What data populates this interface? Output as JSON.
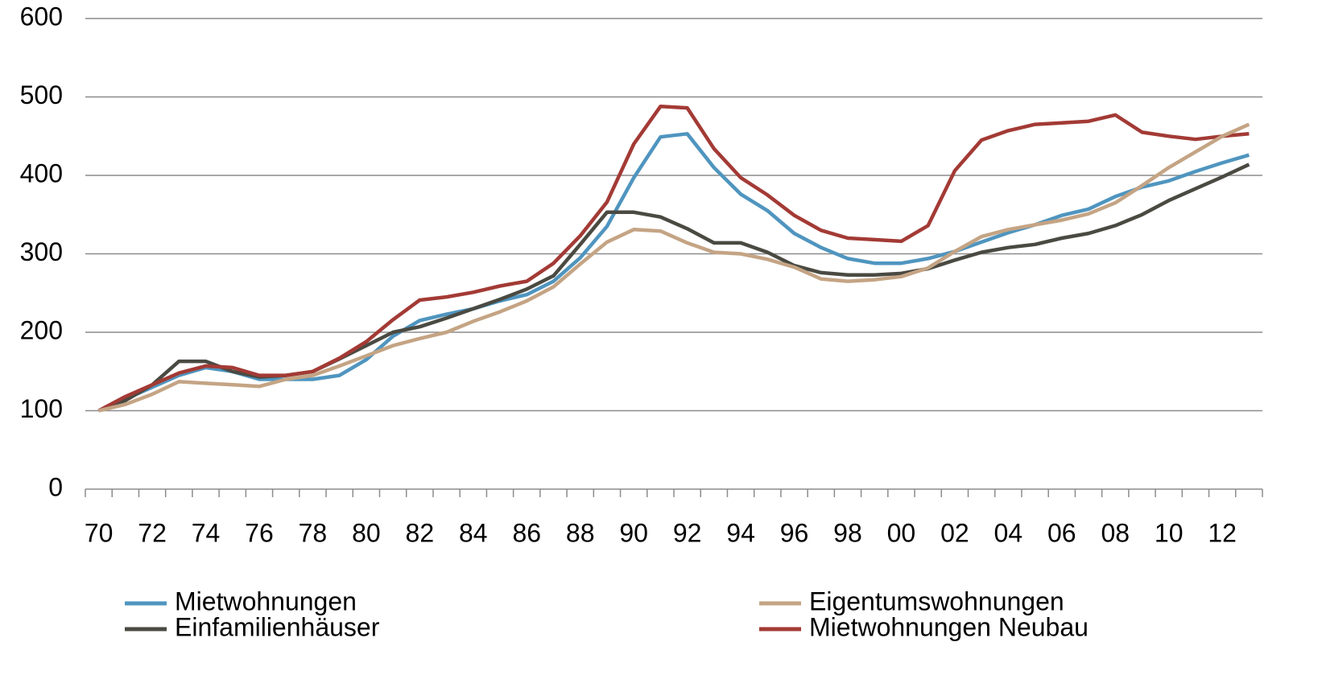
{
  "chart_data": {
    "type": "line",
    "categories": [
      "70",
      null,
      "72",
      null,
      "74",
      null,
      "76",
      null,
      "78",
      null,
      "80",
      null,
      "82",
      null,
      "84",
      null,
      "86",
      null,
      "88",
      null,
      "90",
      null,
      "92",
      null,
      "94",
      null,
      "96",
      null,
      "98",
      null,
      "00",
      null,
      "02",
      null,
      "04",
      null,
      "06",
      null,
      "08",
      null,
      "10",
      null,
      "12",
      null
    ],
    "series": [
      {
        "name": "Mietwohnungen",
        "color": "#4f95bf",
        "values": [
          100,
          115,
          130,
          145,
          155,
          150,
          140,
          140,
          140,
          145,
          165,
          195,
          215,
          223,
          230,
          240,
          248,
          265,
          295,
          335,
          397,
          449,
          453,
          410,
          376,
          355,
          326,
          308,
          294,
          288,
          288,
          294,
          303,
          315,
          327,
          337,
          349,
          357,
          373,
          385,
          393,
          405,
          416,
          426
        ]
      },
      {
        "name": "Eigentumswohnungen",
        "color": "#c4a484",
        "values": [
          100,
          108,
          121,
          137,
          135,
          133,
          131,
          140,
          145,
          157,
          170,
          183,
          192,
          200,
          214,
          226,
          240,
          258,
          287,
          315,
          331,
          329,
          314,
          302,
          300,
          293,
          283,
          268,
          265,
          267,
          271,
          282,
          303,
          322,
          331,
          337,
          343,
          351,
          365,
          387,
          410,
          430,
          450,
          465
        ]
      },
      {
        "name": "Einfamilienhäuser",
        "color": "#4a4a42",
        "values": [
          100,
          113,
          133,
          163,
          163,
          150,
          143,
          145,
          150,
          166,
          183,
          200,
          207,
          218,
          230,
          242,
          255,
          272,
          312,
          353,
          353,
          347,
          332,
          314,
          314,
          302,
          285,
          276,
          273,
          273,
          275,
          281,
          292,
          302,
          308,
          312,
          320,
          326,
          336,
          350,
          368,
          383,
          398,
          414
        ]
      },
      {
        "name": "Mietwohnungen Neubau",
        "color": "#a33a35",
        "values": [
          100,
          118,
          133,
          148,
          157,
          155,
          145,
          145,
          150,
          167,
          188,
          216,
          241,
          245,
          251,
          259,
          265,
          288,
          323,
          366,
          440,
          488,
          486,
          434,
          397,
          375,
          349,
          330,
          320,
          318,
          316,
          336,
          406,
          445,
          457,
          465,
          467,
          469,
          477,
          455,
          450,
          446,
          450,
          453
        ]
      }
    ],
    "ylim": [
      0,
      600
    ],
    "yticks": [
      0,
      100,
      200,
      300,
      400,
      500,
      600
    ],
    "grid": true,
    "legend": "bottom"
  }
}
